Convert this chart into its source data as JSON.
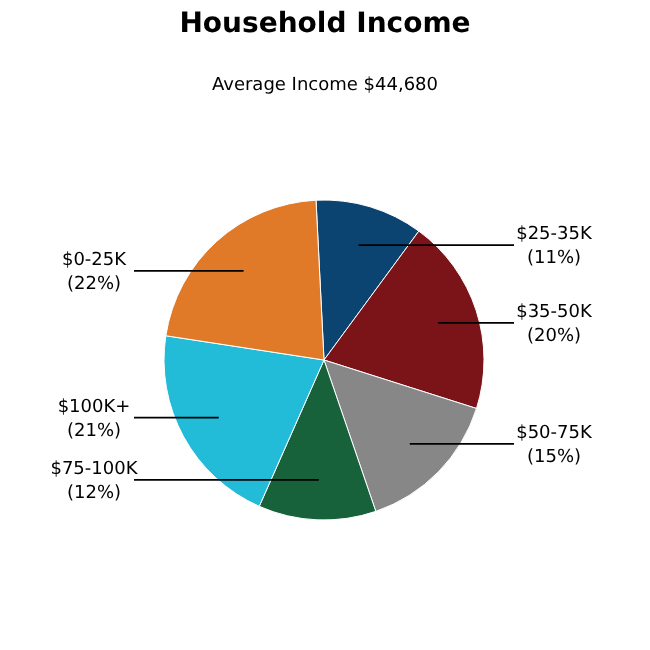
{
  "chart_data": {
    "type": "pie",
    "title": "Household Income",
    "subtitle": "Average Income  $44,680",
    "categories": [
      "$25-35K",
      "$35-50K",
      "$50-75K",
      "$75-100K",
      "$100K+",
      "$0-25K"
    ],
    "values": [
      11,
      20,
      15,
      12,
      21,
      22
    ],
    "value_labels": [
      "(11%)",
      "(20%)",
      "(15%)",
      "(12%)",
      "(21%)",
      "(22%)"
    ],
    "colors": [
      "#0b4470",
      "#7b1418",
      "#878787",
      "#17623a",
      "#22bcd9",
      "#e07a28"
    ],
    "legend": false
  }
}
